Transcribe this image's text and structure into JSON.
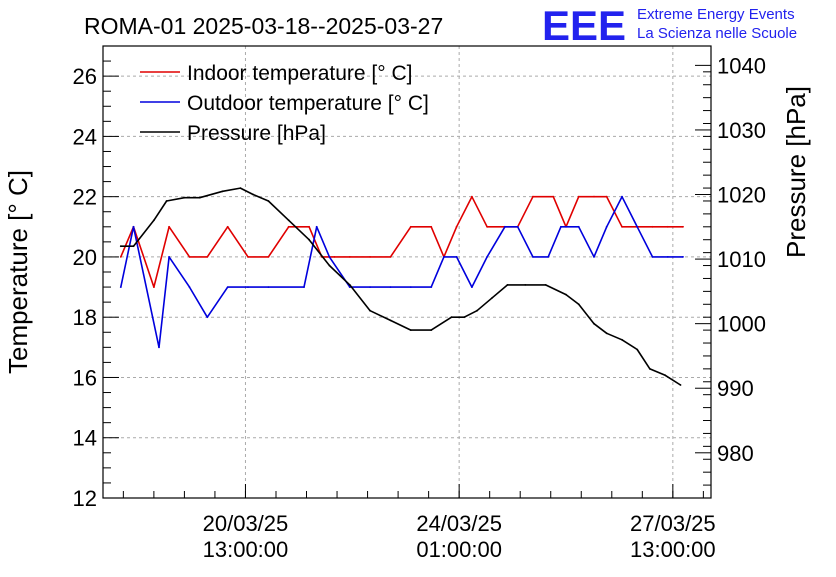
{
  "header": {
    "title": "ROMA-01 2025-03-18--2025-03-27",
    "logo_text": "EEE",
    "org_line1": "Extreme Energy Events",
    "org_line2": "La Scienza nelle Scuole"
  },
  "colors": {
    "indoor": "#e00000",
    "outdoor": "#0000dd",
    "pressure": "#000000",
    "logo": "#2222ee"
  },
  "chart_data": {
    "type": "line",
    "title": "ROMA-01 2025-03-18--2025-03-27",
    "ylabel": "Temperature [° C]",
    "y2label": "Pressure [hPa]",
    "ylim": [
      12,
      27
    ],
    "y2lim": [
      973,
      1043
    ],
    "xlim": [
      "2025-03-18T05:00",
      "2025-03-28T04:00"
    ],
    "grid": true,
    "legend_position": "top-left",
    "yticks": [
      "12",
      "14",
      "16",
      "18",
      "20",
      "22",
      "24",
      "26"
    ],
    "y2ticks": [
      "980",
      "990",
      "1000",
      "1010",
      "1020",
      "1030",
      "1040"
    ],
    "xticks": [
      {
        "x": "2025-03-20T13:00",
        "date": "20/03/25",
        "time": "13:00:00"
      },
      {
        "x": "2025-03-24T01:00",
        "date": "24/03/25",
        "time": "01:00:00"
      },
      {
        "x": "2025-03-27T13:00",
        "date": "27/03/25",
        "time": "13:00:00"
      }
    ],
    "series": [
      {
        "name": "Indoor temperature [° C]",
        "axis": "left",
        "x": [
          "2025-03-18T12:00",
          "2025-03-18T17:00",
          "2025-03-19T01:00",
          "2025-03-19T07:00",
          "2025-03-19T15:00",
          "2025-03-19T22:00",
          "2025-03-20T06:00",
          "2025-03-20T14:00",
          "2025-03-20T22:00",
          "2025-03-21T06:00",
          "2025-03-21T14:00",
          "2025-03-21T19:00",
          "2025-03-22T00:00",
          "2025-03-22T06:00",
          "2025-03-22T14:00",
          "2025-03-22T22:00",
          "2025-03-23T06:00",
          "2025-03-23T14:00",
          "2025-03-23T19:00",
          "2025-03-24T00:00",
          "2025-03-24T06:00",
          "2025-03-24T12:00",
          "2025-03-24T19:00",
          "2025-03-25T00:00",
          "2025-03-25T06:00",
          "2025-03-25T14:00",
          "2025-03-25T19:00",
          "2025-03-26T00:00",
          "2025-03-26T06:00",
          "2025-03-26T11:00",
          "2025-03-26T17:00",
          "2025-03-26T23:00",
          "2025-03-27T05:00",
          "2025-03-27T11:00",
          "2025-03-27T17:00"
        ],
        "values": [
          20,
          21,
          19,
          21,
          20,
          20,
          21,
          20,
          20,
          21,
          21,
          20,
          20,
          20,
          20,
          20,
          21,
          21,
          20,
          21,
          22,
          21,
          21,
          21,
          22,
          22,
          21,
          22,
          22,
          22,
          21,
          21,
          21,
          21,
          21
        ]
      },
      {
        "name": "Outdoor temperature [° C]",
        "axis": "left",
        "x": [
          "2025-03-18T12:00",
          "2025-03-18T17:00",
          "2025-03-19T03:00",
          "2025-03-19T07:00",
          "2025-03-19T15:00",
          "2025-03-19T22:00",
          "2025-03-20T06:00",
          "2025-03-20T14:00",
          "2025-03-20T22:00",
          "2025-03-21T12:00",
          "2025-03-21T17:00",
          "2025-03-21T22:00",
          "2025-03-22T06:00",
          "2025-03-22T14:00",
          "2025-03-22T22:00",
          "2025-03-23T06:00",
          "2025-03-23T14:00",
          "2025-03-23T19:00",
          "2025-03-24T00:00",
          "2025-03-24T06:00",
          "2025-03-24T12:00",
          "2025-03-24T19:00",
          "2025-03-25T00:00",
          "2025-03-25T06:00",
          "2025-03-25T12:00",
          "2025-03-25T17:00",
          "2025-03-26T00:00",
          "2025-03-26T06:00",
          "2025-03-26T11:00",
          "2025-03-26T17:00",
          "2025-03-26T23:00",
          "2025-03-27T05:00",
          "2025-03-27T11:00",
          "2025-03-27T17:00"
        ],
        "values": [
          19,
          21,
          17,
          20,
          19,
          18,
          19,
          19,
          19,
          19,
          21,
          20,
          19,
          19,
          19,
          19,
          19,
          20,
          20,
          19,
          20,
          21,
          21,
          20,
          20,
          21,
          21,
          20,
          21,
          22,
          21,
          20,
          20,
          20
        ]
      },
      {
        "name": "Pressure [hPa]",
        "axis": "right",
        "x": [
          "2025-03-18T12:00",
          "2025-03-18T17:00",
          "2025-03-19T01:00",
          "2025-03-19T06:00",
          "2025-03-19T13:00",
          "2025-03-19T19:00",
          "2025-03-20T04:00",
          "2025-03-20T11:00",
          "2025-03-20T16:00",
          "2025-03-20T22:00",
          "2025-03-21T06:00",
          "2025-03-21T14:00",
          "2025-03-21T22:00",
          "2025-03-22T06:00",
          "2025-03-22T14:00",
          "2025-03-22T22:00",
          "2025-03-23T06:00",
          "2025-03-23T14:00",
          "2025-03-23T22:00",
          "2025-03-24T03:00",
          "2025-03-24T08:00",
          "2025-03-24T14:00",
          "2025-03-24T20:00",
          "2025-03-25T03:00",
          "2025-03-25T11:00",
          "2025-03-25T19:00",
          "2025-03-26T00:00",
          "2025-03-26T06:00",
          "2025-03-26T11:00",
          "2025-03-26T17:00",
          "2025-03-26T23:00",
          "2025-03-27T04:00",
          "2025-03-27T10:00",
          "2025-03-27T16:00"
        ],
        "values": [
          1012,
          1012,
          1016,
          1019,
          1019.5,
          1019.5,
          1020.5,
          1021,
          1020,
          1019,
          1016,
          1013,
          1009,
          1006,
          1002,
          1000.5,
          999,
          999,
          1001,
          1001,
          1002,
          1004,
          1006,
          1006,
          1006,
          1004.5,
          1003,
          1000,
          998.5,
          997.5,
          996,
          993,
          992,
          990.5
        ]
      }
    ]
  }
}
